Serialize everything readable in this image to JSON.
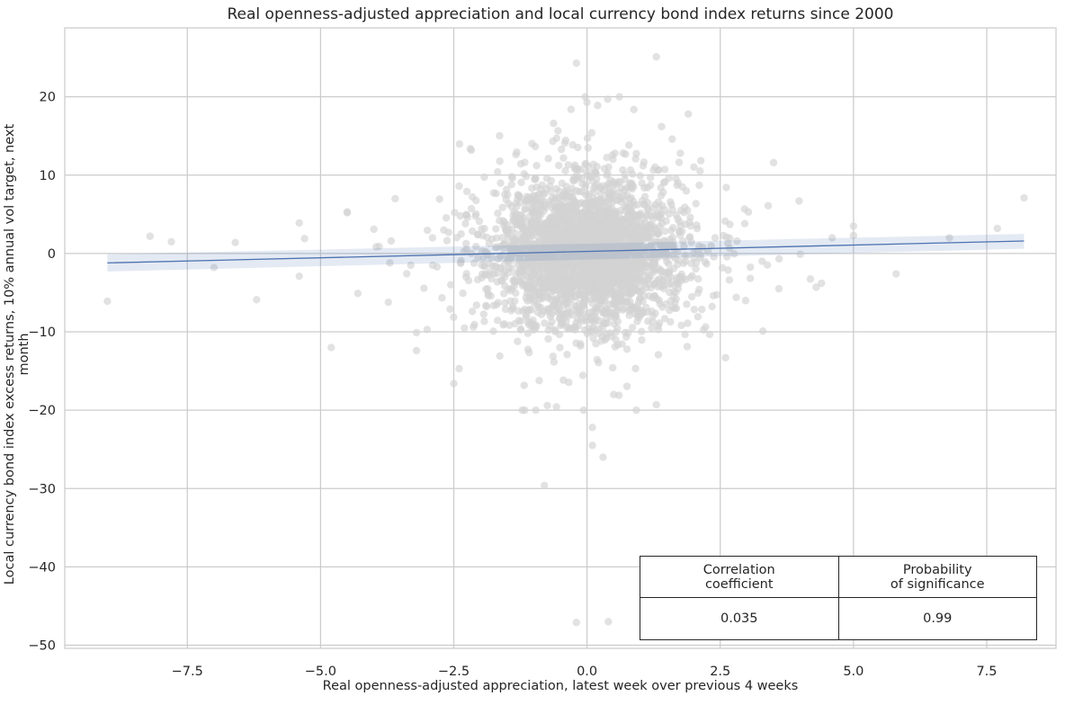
{
  "chart_data": {
    "type": "scatter",
    "title": "Real openness-adjusted appreciation and local currency bond index returns since 2000",
    "xlabel": "Real openness-adjusted appreciation, latest week over previous 4 weeks",
    "ylabel": "Local currency bond index excess returns, 10% annual vol target, next month",
    "xlim": [
      -9.8,
      8.8
    ],
    "ylim": [
      -50.4,
      28.8
    ],
    "xticks": [
      -7.5,
      -5.0,
      -2.5,
      0.0,
      2.5,
      5.0,
      7.5
    ],
    "xtick_labels": [
      "−7.5",
      "−5.0",
      "−2.5",
      "0.0",
      "2.5",
      "5.0",
      "7.5"
    ],
    "yticks": [
      -50,
      -40,
      -30,
      -20,
      -10,
      0,
      10,
      20
    ],
    "ytick_labels": [
      "−50",
      "−40",
      "−30",
      "−20",
      "−10",
      "0",
      "10",
      "20"
    ],
    "grid": true,
    "point_color": "#d3d3d3",
    "line_color": "#4c72b0",
    "band_color": "#4c72b0",
    "regression": {
      "x": [
        -9.0,
        8.2
      ],
      "y": [
        -1.2,
        1.6
      ],
      "ci_low_start": -2.3,
      "ci_high_start": -0.1,
      "ci_low_end": 0.6,
      "ci_high_end": 2.5
    },
    "outliers": {
      "x": [
        -9.0,
        -8.2,
        -7.8,
        -7.0,
        -6.6,
        -6.2,
        -5.4,
        -5.4,
        -5.3,
        -4.8,
        -4.5,
        -4.5,
        -4.3,
        -4.0,
        -3.9,
        -3.7,
        -3.6,
        -3.2,
        -3.2,
        -3.0,
        -2.9,
        -2.5,
        -2.4,
        -2.4,
        -2.3,
        -0.8,
        -0.2,
        0.1,
        0.3,
        0.4,
        0.5,
        1.3,
        1.4,
        2.6,
        2.8,
        3.3,
        3.4,
        3.5,
        3.6,
        4.0,
        4.3,
        4.4,
        4.6,
        5.0,
        5.0,
        5.8,
        6.8,
        7.7,
        8.2,
        0.0,
        0.1,
        1.3,
        1.9,
        -0.2,
        -0.3,
        0.2,
        0.6
      ],
      "y": [
        -6.1,
        2.2,
        1.5,
        -1.8,
        1.4,
        -5.9,
        3.9,
        -2.9,
        1.9,
        -12.0,
        5.2,
        5.3,
        -5.1,
        3.1,
        0.9,
        -1.2,
        7.0,
        -12.4,
        -10.1,
        -9.7,
        2.0,
        -16.6,
        -14.7,
        8.6,
        -9.5,
        -29.6,
        -47.1,
        -24.5,
        -26.0,
        -47.0,
        -18.0,
        25.1,
        16.2,
        -13.3,
        -5.6,
        -9.9,
        6.1,
        11.6,
        -4.5,
        -0.1,
        -4.3,
        -3.8,
        2.0,
        3.5,
        2.3,
        -2.6,
        2.0,
        3.2,
        7.1,
        19.3,
        -22.2,
        -19.3,
        17.8,
        24.3,
        18.4,
        18.9,
        -18.1
      ]
    },
    "cloud": {
      "count": 2800,
      "x_center": 0.0,
      "x_spread": 0.85,
      "y_center": 0.2,
      "y_spread": 4.6,
      "seed": 20240607
    }
  },
  "stats_table": {
    "headers": [
      [
        "Correlation",
        "coefficient"
      ],
      [
        "Probability",
        "of significance"
      ]
    ],
    "values": [
      "0.035",
      "0.99"
    ]
  }
}
